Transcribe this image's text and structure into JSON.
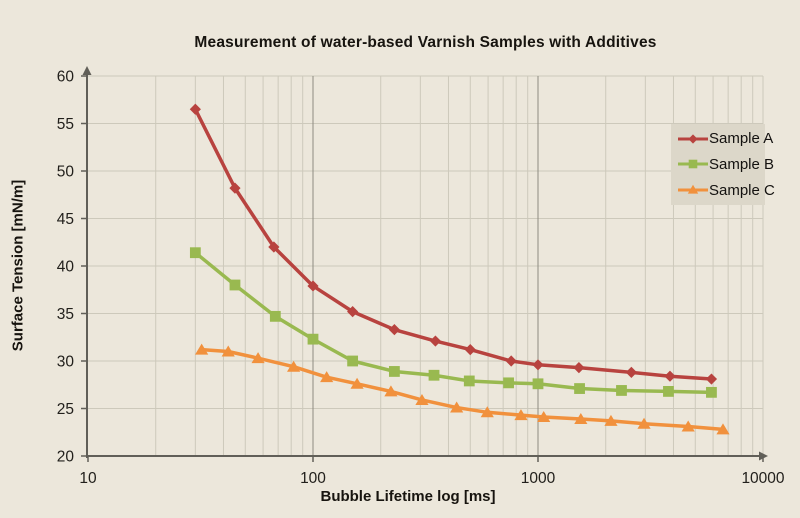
{
  "chart_data": {
    "type": "line",
    "title": "Measurement of water-based Varnish Samples with Additives",
    "xlabel": "Bubble Lifetime log [ms]",
    "ylabel": "Surface Tension [mN/m]",
    "x_scale": "log",
    "xlim": [
      10,
      10000
    ],
    "ylim": [
      20,
      60
    ],
    "x_ticks": [
      10,
      100,
      1000,
      10000
    ],
    "x_tick_labels": [
      "10",
      "100",
      "1000",
      "10000"
    ],
    "y_ticks": [
      20,
      25,
      30,
      35,
      40,
      45,
      50,
      55,
      60
    ],
    "grid": "both",
    "legend_position": "upper right",
    "series": [
      {
        "name": "Sample A",
        "marker": "diamond",
        "color": "#b8433f",
        "points": [
          [
            30,
            56.5
          ],
          [
            45,
            48.2
          ],
          [
            67,
            42.0
          ],
          [
            100,
            37.9
          ],
          [
            150,
            35.2
          ],
          [
            230,
            33.3
          ],
          [
            350,
            32.1
          ],
          [
            500,
            31.2
          ],
          [
            760,
            30.0
          ],
          [
            1000,
            29.6
          ],
          [
            1520,
            29.3
          ],
          [
            2600,
            28.8
          ],
          [
            3860,
            28.4
          ],
          [
            5900,
            28.1
          ]
        ]
      },
      {
        "name": "Sample B",
        "marker": "square",
        "color": "#99b950",
        "points": [
          [
            30,
            41.4
          ],
          [
            45,
            38.0
          ],
          [
            68,
            34.7
          ],
          [
            100,
            32.3
          ],
          [
            150,
            30.0
          ],
          [
            230,
            28.9
          ],
          [
            345,
            28.5
          ],
          [
            495,
            27.9
          ],
          [
            740,
            27.7
          ],
          [
            1000,
            27.6
          ],
          [
            1530,
            27.1
          ],
          [
            2350,
            26.9
          ],
          [
            3800,
            26.8
          ],
          [
            5900,
            26.7
          ]
        ]
      },
      {
        "name": "Sample C",
        "marker": "triangle",
        "color": "#f1913d",
        "points": [
          [
            32,
            31.2
          ],
          [
            42,
            31.0
          ],
          [
            57,
            30.3
          ],
          [
            82,
            29.4
          ],
          [
            115,
            28.3
          ],
          [
            157,
            27.6
          ],
          [
            222,
            26.8
          ],
          [
            305,
            25.9
          ],
          [
            435,
            25.1
          ],
          [
            595,
            24.6
          ],
          [
            840,
            24.3
          ],
          [
            1060,
            24.1
          ],
          [
            1550,
            23.9
          ],
          [
            2110,
            23.7
          ],
          [
            2960,
            23.4
          ],
          [
            4650,
            23.1
          ],
          [
            6640,
            22.8
          ]
        ]
      }
    ]
  },
  "colors": {
    "background": "#ece7db",
    "legend_background": "#dcd7c9",
    "grid_minor": "#cdc9bb",
    "grid_major": "#8e8b82",
    "axis": "#615f58",
    "tick_text": "#22201c"
  }
}
